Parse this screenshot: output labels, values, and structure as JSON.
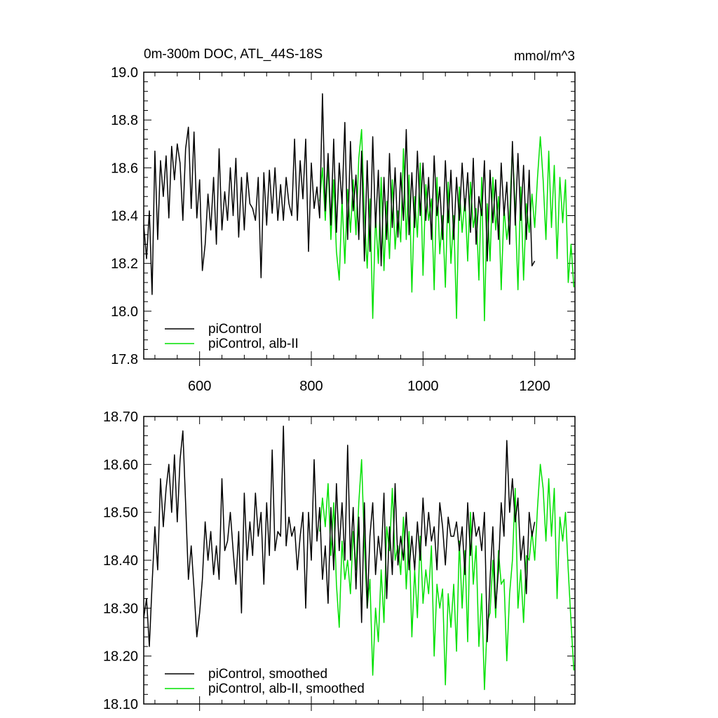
{
  "chart_data": [
    {
      "type": "line",
      "title": "0m-300m DOC, ATL_44S-18S",
      "units": "mmol/m^3",
      "xlim": [
        500,
        1272
      ],
      "ylim": [
        17.8,
        19.0
      ],
      "x_ticks": [
        600,
        800,
        1000,
        1200
      ],
      "x_tick_labels": [
        "600",
        "800",
        "1000",
        "1200"
      ],
      "y_ticks": [
        17.8,
        18.0,
        18.2,
        18.4,
        18.6,
        18.8,
        19.0
      ],
      "y_tick_labels": [
        "17.8",
        "18.0",
        "18.2",
        "18.4",
        "18.6",
        "18.8",
        "19.0"
      ],
      "legend_position": "bottom-left",
      "grid": false,
      "series": [
        {
          "name": "piControl",
          "color": "#000000",
          "x": [
            500,
            505,
            510,
            515,
            520,
            525,
            530,
            535,
            540,
            545,
            550,
            555,
            560,
            565,
            570,
            575,
            580,
            585,
            590,
            595,
            600,
            605,
            610,
            615,
            620,
            625,
            630,
            635,
            640,
            645,
            650,
            655,
            660,
            665,
            670,
            675,
            680,
            685,
            690,
            695,
            700,
            705,
            710,
            715,
            720,
            725,
            730,
            735,
            740,
            745,
            750,
            755,
            760,
            765,
            770,
            775,
            780,
            785,
            790,
            795,
            800,
            805,
            810,
            815,
            820,
            825,
            830,
            835,
            840,
            845,
            850,
            855,
            860,
            865,
            870,
            875,
            880,
            885,
            890,
            895,
            900,
            905,
            910,
            915,
            920,
            925,
            930,
            935,
            940,
            945,
            950,
            955,
            960,
            965,
            970,
            975,
            980,
            985,
            990,
            995,
            1000,
            1005,
            1010,
            1015,
            1020,
            1025,
            1030,
            1035,
            1040,
            1045,
            1050,
            1055,
            1060,
            1065,
            1070,
            1075,
            1080,
            1085,
            1090,
            1095,
            1100,
            1105,
            1110,
            1115,
            1120,
            1125,
            1130,
            1135,
            1140,
            1145,
            1150,
            1155,
            1160,
            1165,
            1170,
            1175,
            1180,
            1185,
            1190,
            1195,
            1200
          ],
          "values": [
            18.36,
            18.22,
            18.42,
            18.07,
            18.67,
            18.3,
            18.63,
            18.48,
            18.65,
            18.39,
            18.69,
            18.55,
            18.7,
            18.62,
            18.38,
            18.68,
            18.77,
            18.43,
            18.75,
            18.39,
            18.55,
            18.17,
            18.28,
            18.49,
            18.34,
            18.56,
            18.28,
            18.68,
            18.34,
            18.5,
            18.38,
            18.6,
            18.4,
            18.64,
            18.31,
            18.56,
            18.34,
            18.58,
            18.45,
            18.43,
            18.38,
            18.56,
            18.14,
            18.58,
            18.36,
            18.59,
            18.41,
            18.6,
            18.38,
            18.53,
            18.38,
            18.56,
            18.45,
            18.4,
            18.72,
            18.38,
            18.63,
            18.47,
            18.72,
            18.25,
            18.62,
            18.43,
            18.52,
            18.39,
            18.91,
            18.42,
            18.66,
            18.36,
            18.72,
            18.33,
            18.62,
            18.45,
            18.79,
            18.3,
            18.71,
            18.42,
            18.57,
            18.3,
            18.67,
            18.21,
            18.63,
            18.25,
            18.73,
            18.35,
            18.59,
            18.19,
            18.56,
            18.3,
            18.66,
            18.35,
            18.6,
            18.31,
            18.58,
            18.38,
            18.76,
            18.32,
            18.58,
            18.35,
            18.67,
            18.4,
            18.62,
            18.38,
            18.56,
            18.3,
            18.65,
            18.4,
            18.52,
            18.3,
            18.63,
            18.37,
            18.59,
            18.3,
            18.56,
            18.38,
            18.62,
            18.42,
            18.58,
            18.33,
            18.64,
            18.28,
            18.48,
            18.4,
            18.63,
            18.21,
            18.59,
            18.37,
            18.55,
            18.3,
            18.62,
            18.4,
            18.54,
            18.28,
            18.71,
            18.36,
            18.66,
            18.38,
            18.61,
            18.3,
            18.59,
            18.19,
            18.21
          ]
        },
        {
          "name": "piControl, alb-II",
          "color": "#00e000",
          "x": [
            815,
            820,
            825,
            830,
            835,
            840,
            845,
            850,
            855,
            860,
            865,
            870,
            875,
            880,
            885,
            890,
            895,
            900,
            905,
            910,
            915,
            920,
            925,
            930,
            935,
            940,
            945,
            950,
            955,
            960,
            965,
            970,
            975,
            980,
            985,
            990,
            995,
            1000,
            1005,
            1010,
            1015,
            1020,
            1025,
            1030,
            1035,
            1040,
            1045,
            1050,
            1055,
            1060,
            1065,
            1070,
            1075,
            1080,
            1085,
            1090,
            1095,
            1100,
            1105,
            1110,
            1115,
            1120,
            1125,
            1130,
            1135,
            1140,
            1145,
            1150,
            1155,
            1160,
            1165,
            1170,
            1175,
            1180,
            1185,
            1190,
            1195,
            1200,
            1205,
            1210,
            1215,
            1220,
            1225,
            1230,
            1235,
            1240,
            1245,
            1250,
            1255,
            1260,
            1265,
            1270
          ],
          "values": [
            18.46,
            18.6,
            18.38,
            18.62,
            18.3,
            18.55,
            18.25,
            18.13,
            18.47,
            18.2,
            18.51,
            18.33,
            18.55,
            18.32,
            18.64,
            18.76,
            18.4,
            18.18,
            18.47,
            17.97,
            18.4,
            18.2,
            18.56,
            18.17,
            18.46,
            18.22,
            18.55,
            18.26,
            18.42,
            18.29,
            18.68,
            18.3,
            18.57,
            18.08,
            18.48,
            18.31,
            18.62,
            18.15,
            18.53,
            18.38,
            18.47,
            18.09,
            18.56,
            18.24,
            18.4,
            18.1,
            18.54,
            18.2,
            18.4,
            17.97,
            18.52,
            18.33,
            18.47,
            18.21,
            18.54,
            18.35,
            18.43,
            18.13,
            18.56,
            17.96,
            18.45,
            18.21,
            18.56,
            18.34,
            18.48,
            18.09,
            18.43,
            18.3,
            18.4,
            18.69,
            18.43,
            18.09,
            18.52,
            18.13,
            18.45,
            18.33,
            18.49,
            18.35,
            18.56,
            18.73,
            18.55,
            18.3,
            18.67,
            18.35,
            18.61,
            18.22,
            18.56,
            18.37,
            18.55,
            18.12,
            18.28,
            18.1
          ]
        }
      ]
    },
    {
      "type": "line",
      "title": "",
      "xlim": [
        500,
        1272
      ],
      "ylim": [
        18.1,
        18.7
      ],
      "x_ticks": [
        600,
        800,
        1000,
        1200
      ],
      "y_ticks": [
        18.1,
        18.2,
        18.3,
        18.4,
        18.5,
        18.6,
        18.7
      ],
      "y_tick_labels": [
        "18.10",
        "18.20",
        "18.30",
        "18.40",
        "18.50",
        "18.60",
        "18.70"
      ],
      "legend_position": "bottom-left",
      "grid": false,
      "series": [
        {
          "name": "piControl, smoothed",
          "color": "#000000",
          "x": [
            500,
            505,
            510,
            515,
            520,
            525,
            530,
            535,
            540,
            545,
            550,
            555,
            560,
            565,
            570,
            575,
            580,
            585,
            590,
            595,
            600,
            605,
            610,
            615,
            620,
            625,
            630,
            635,
            640,
            645,
            650,
            655,
            660,
            665,
            670,
            675,
            680,
            685,
            690,
            695,
            700,
            705,
            710,
            715,
            720,
            725,
            730,
            735,
            740,
            745,
            750,
            755,
            760,
            765,
            770,
            775,
            780,
            785,
            790,
            795,
            800,
            805,
            810,
            815,
            820,
            825,
            830,
            835,
            840,
            845,
            850,
            855,
            860,
            865,
            870,
            875,
            880,
            885,
            890,
            895,
            900,
            905,
            910,
            915,
            920,
            925,
            930,
            935,
            940,
            945,
            950,
            955,
            960,
            965,
            970,
            975,
            980,
            985,
            990,
            995,
            1000,
            1005,
            1010,
            1015,
            1020,
            1025,
            1030,
            1035,
            1040,
            1045,
            1050,
            1055,
            1060,
            1065,
            1070,
            1075,
            1080,
            1085,
            1090,
            1095,
            1100,
            1105,
            1110,
            1115,
            1120,
            1125,
            1130,
            1135,
            1140,
            1145,
            1150,
            1155,
            1160,
            1165,
            1170,
            1175,
            1180,
            1185,
            1190,
            1195,
            1200
          ],
          "values": [
            18.28,
            18.32,
            18.22,
            18.35,
            18.47,
            18.38,
            18.57,
            18.47,
            18.55,
            18.6,
            18.5,
            18.62,
            18.48,
            18.61,
            18.67,
            18.52,
            18.36,
            18.43,
            18.34,
            18.24,
            18.29,
            18.36,
            18.48,
            18.4,
            18.46,
            18.37,
            18.43,
            18.36,
            18.57,
            18.42,
            18.44,
            18.5,
            18.42,
            18.35,
            18.46,
            18.29,
            18.54,
            18.4,
            18.48,
            18.41,
            18.54,
            18.45,
            18.5,
            18.35,
            18.52,
            18.41,
            18.63,
            18.42,
            18.46,
            18.45,
            18.68,
            18.43,
            18.49,
            18.45,
            18.47,
            18.38,
            18.45,
            18.5,
            18.3,
            18.5,
            18.4,
            18.61,
            18.44,
            18.51,
            18.36,
            18.43,
            18.31,
            18.51,
            18.38,
            18.56,
            18.42,
            18.52,
            18.4,
            18.64,
            18.4,
            18.51,
            18.34,
            18.49,
            18.27,
            18.52,
            18.3,
            18.45,
            18.52,
            18.37,
            18.45,
            18.4,
            18.54,
            18.32,
            18.47,
            18.37,
            18.56,
            18.39,
            18.45,
            18.4,
            18.5,
            18.38,
            18.45,
            18.38,
            18.48,
            18.4,
            18.53,
            18.43,
            18.5,
            18.44,
            18.47,
            18.38,
            18.52,
            18.47,
            18.39,
            18.49,
            18.45,
            18.45,
            18.48,
            18.42,
            18.47,
            18.37,
            18.52,
            18.41,
            18.5,
            18.45,
            18.47,
            18.42,
            18.5,
            18.23,
            18.36,
            18.47,
            18.3,
            18.38,
            18.52,
            18.45,
            18.65,
            18.5,
            18.57,
            18.48,
            18.53,
            18.4,
            18.45,
            18.33,
            18.5,
            18.45,
            18.48
          ]
        },
        {
          "name": "piControl, alb-II, smoothed",
          "color": "#00e000",
          "x": [
            815,
            820,
            825,
            830,
            835,
            840,
            845,
            850,
            855,
            860,
            865,
            870,
            875,
            880,
            885,
            890,
            895,
            900,
            905,
            910,
            915,
            920,
            925,
            930,
            935,
            940,
            945,
            950,
            955,
            960,
            965,
            970,
            975,
            980,
            985,
            990,
            995,
            1000,
            1005,
            1010,
            1015,
            1020,
            1025,
            1030,
            1035,
            1040,
            1045,
            1050,
            1055,
            1060,
            1065,
            1070,
            1075,
            1080,
            1085,
            1090,
            1095,
            1100,
            1105,
            1110,
            1115,
            1120,
            1125,
            1130,
            1135,
            1140,
            1145,
            1150,
            1155,
            1160,
            1165,
            1170,
            1175,
            1180,
            1185,
            1190,
            1195,
            1200,
            1205,
            1210,
            1215,
            1220,
            1225,
            1230,
            1235,
            1240,
            1245,
            1250,
            1255,
            1260,
            1265,
            1270
          ],
          "values": [
            18.46,
            18.53,
            18.47,
            18.56,
            18.41,
            18.52,
            18.35,
            18.26,
            18.44,
            18.36,
            18.4,
            18.33,
            18.46,
            18.38,
            18.52,
            18.61,
            18.43,
            18.3,
            18.36,
            18.16,
            18.3,
            18.23,
            18.38,
            18.27,
            18.47,
            18.42,
            18.55,
            18.4,
            18.43,
            18.37,
            18.49,
            18.34,
            18.46,
            18.24,
            18.38,
            18.28,
            18.45,
            18.31,
            18.38,
            18.33,
            18.43,
            18.2,
            18.35,
            18.3,
            18.34,
            18.14,
            18.33,
            18.26,
            18.35,
            18.21,
            18.44,
            18.3,
            18.42,
            18.23,
            18.5,
            18.35,
            18.43,
            18.22,
            18.33,
            18.13,
            18.27,
            18.29,
            18.4,
            18.28,
            18.42,
            18.35,
            18.36,
            18.19,
            18.33,
            18.4,
            18.55,
            18.3,
            18.38,
            18.27,
            18.41,
            18.4,
            18.46,
            18.4,
            18.51,
            18.6,
            18.55,
            18.44,
            18.57,
            18.45,
            18.55,
            18.32,
            18.49,
            18.44,
            18.5,
            18.38,
            18.27,
            18.17
          ]
        }
      ]
    }
  ]
}
